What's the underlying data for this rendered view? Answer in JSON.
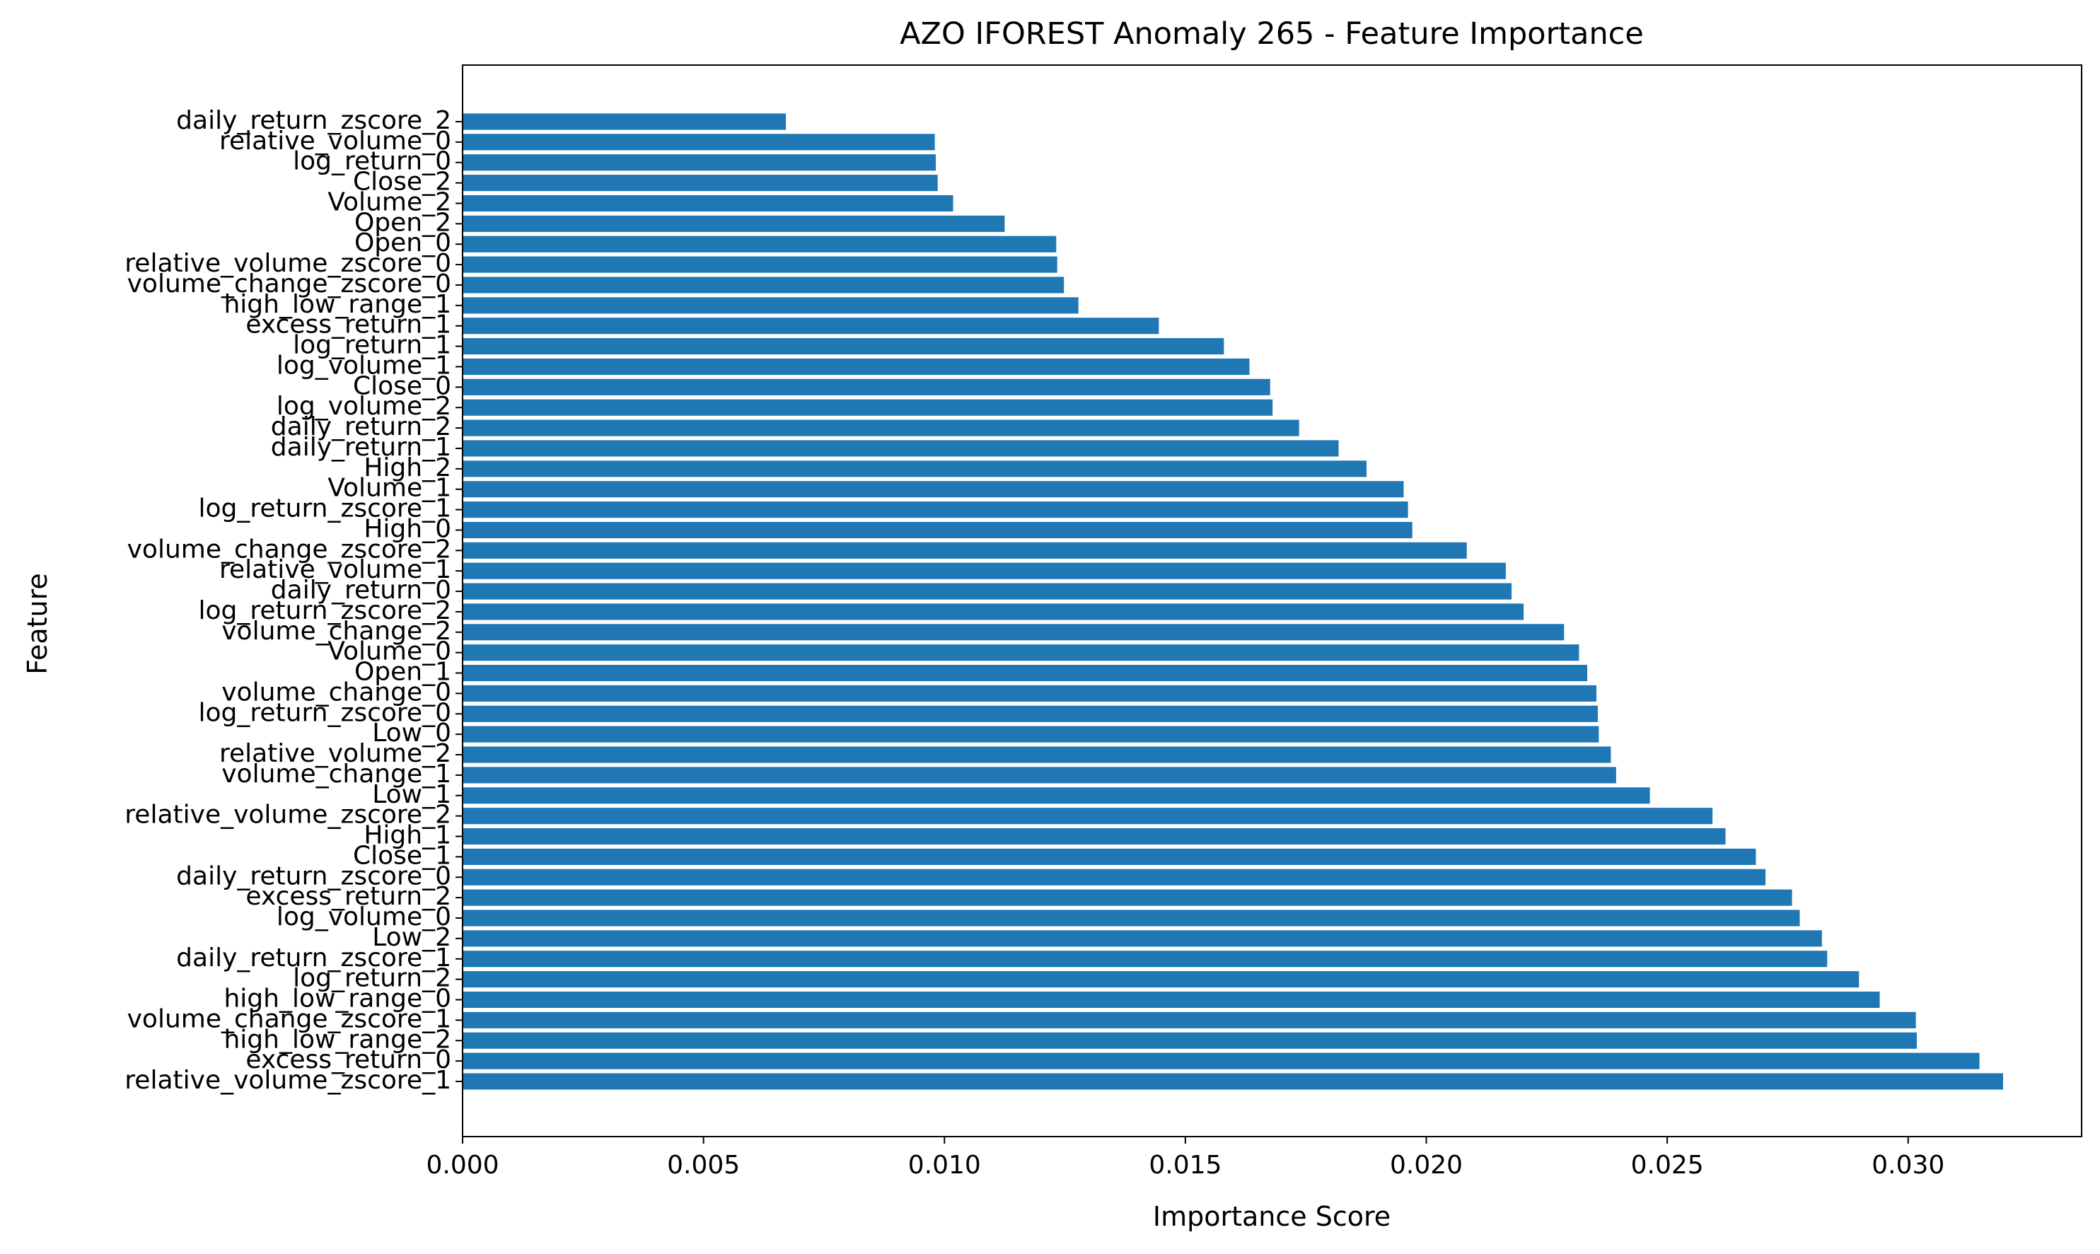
{
  "chart_data": {
    "type": "bar",
    "orientation": "horizontal",
    "title": "AZO IFOREST Anomaly 265 - Feature Importance",
    "xlabel": "Importance Score",
    "ylabel": "Feature",
    "xlim": [
      0.0,
      0.0336
    ],
    "xticks": [
      "0.000",
      "0.005",
      "0.010",
      "0.015",
      "0.020",
      "0.025",
      "0.030"
    ],
    "grid": false,
    "bar_color": "#1f77b4",
    "categories": [
      "daily_return_zscore_2",
      "relative_volume_0",
      "log_return_0",
      "Close_2",
      "Volume_2",
      "Open_2",
      "Open_0",
      "relative_volume_zscore_0",
      "volume_change_zscore_0",
      "high_low_range_1",
      "excess_return_1",
      "log_return_1",
      "log_volume_1",
      "Close_0",
      "log_volume_2",
      "daily_return_2",
      "daily_return_1",
      "High_2",
      "Volume_1",
      "log_return_zscore_1",
      "High_0",
      "volume_change_zscore_2",
      "relative_volume_1",
      "daily_return_0",
      "log_return_zscore_2",
      "volume_change_2",
      "Volume_0",
      "Open_1",
      "volume_change_0",
      "log_return_zscore_0",
      "Low_0",
      "relative_volume_2",
      "volume_change_1",
      "Low_1",
      "relative_volume_zscore_2",
      "High_1",
      "Close_1",
      "daily_return_zscore_0",
      "excess_return_2",
      "log_volume_0",
      "Low_2",
      "daily_return_zscore_1",
      "log_return_2",
      "high_low_range_0",
      "volume_change_zscore_1",
      "high_low_range_2",
      "excess_return_0",
      "relative_volume_zscore_1"
    ],
    "values": [
      0.00671,
      0.0098,
      0.00982,
      0.00986,
      0.01018,
      0.01125,
      0.01232,
      0.01234,
      0.01248,
      0.01278,
      0.01445,
      0.0158,
      0.01633,
      0.01676,
      0.01681,
      0.01736,
      0.01818,
      0.01876,
      0.01953,
      0.01962,
      0.01971,
      0.02084,
      0.02165,
      0.02177,
      0.02202,
      0.02286,
      0.02317,
      0.02334,
      0.02353,
      0.02356,
      0.02358,
      0.02383,
      0.02394,
      0.02464,
      0.02594,
      0.02621,
      0.02684,
      0.02704,
      0.02759,
      0.02775,
      0.02821,
      0.02832,
      0.02898,
      0.02941,
      0.03016,
      0.03018,
      0.03148,
      0.03197
    ]
  }
}
